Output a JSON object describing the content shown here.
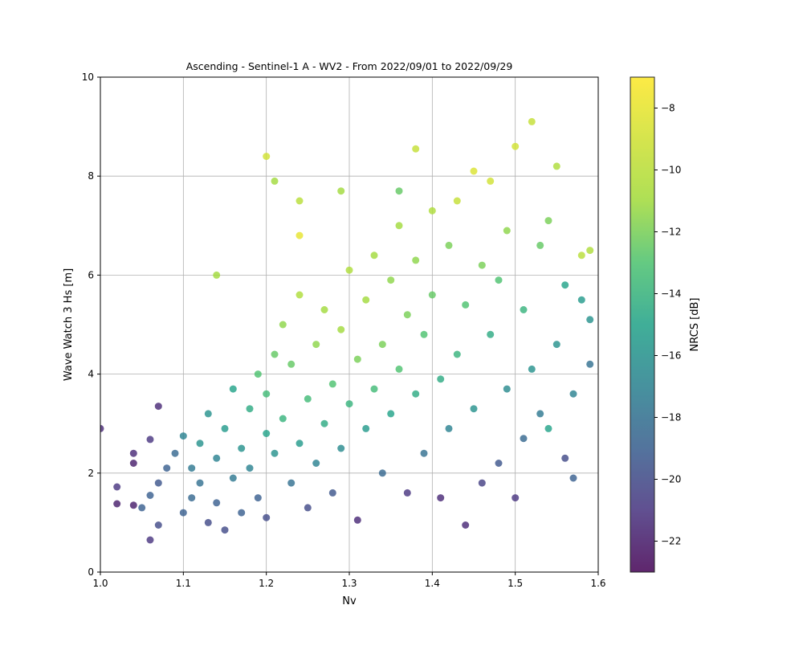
{
  "chart_data": {
    "type": "scatter",
    "title": "Ascending - Sentinel-1 A - WV2 - From 2022/09/01 to 2022/09/29",
    "xlabel": "Nv",
    "ylabel": "Wave Watch 3 Hs [m]",
    "xlim": [
      1.0,
      1.6
    ],
    "ylim": [
      0,
      10
    ],
    "xticks": [
      "1.0",
      "1.1",
      "1.2",
      "1.3",
      "1.4",
      "1.5",
      "1.6"
    ],
    "yticks": [
      "0",
      "2",
      "4",
      "6",
      "8",
      "10"
    ],
    "grid": true,
    "colormap": "viridis",
    "colorbar": {
      "label": "NRCS [dB]",
      "range": [
        -23,
        -7
      ],
      "ticks": [
        "−22",
        "−20",
        "−18",
        "−16",
        "−14",
        "−12",
        "−10",
        "−8"
      ]
    },
    "points_note_free": true,
    "series": [
      {
        "points": [
          [
            1.0,
            2.9,
            -21.5
          ],
          [
            1.02,
            1.72,
            -21
          ],
          [
            1.02,
            1.38,
            -22
          ],
          [
            1.04,
            2.4,
            -21.5
          ],
          [
            1.04,
            2.2,
            -22
          ],
          [
            1.04,
            1.35,
            -22
          ],
          [
            1.06,
            2.68,
            -21
          ],
          [
            1.07,
            3.35,
            -21.5
          ],
          [
            1.06,
            0.65,
            -21
          ],
          [
            1.07,
            0.95,
            -20
          ],
          [
            1.05,
            1.3,
            -19
          ],
          [
            1.06,
            1.55,
            -19
          ],
          [
            1.07,
            1.8,
            -19.5
          ],
          [
            1.08,
            2.1,
            -19
          ],
          [
            1.09,
            2.4,
            -18.5
          ],
          [
            1.1,
            2.75,
            -17
          ],
          [
            1.1,
            1.2,
            -19
          ],
          [
            1.11,
            1.5,
            -18.5
          ],
          [
            1.11,
            2.1,
            -17.5
          ],
          [
            1.12,
            1.8,
            -18
          ],
          [
            1.12,
            2.6,
            -16
          ],
          [
            1.13,
            1.0,
            -20
          ],
          [
            1.13,
            3.2,
            -16
          ],
          [
            1.14,
            2.3,
            -17
          ],
          [
            1.14,
            1.4,
            -19
          ],
          [
            1.15,
            2.9,
            -15.5
          ],
          [
            1.15,
            0.85,
            -20
          ],
          [
            1.16,
            3.7,
            -15
          ],
          [
            1.16,
            1.9,
            -17.5
          ],
          [
            1.17,
            2.5,
            -16
          ],
          [
            1.17,
            1.2,
            -19
          ],
          [
            1.18,
            3.3,
            -14.5
          ],
          [
            1.18,
            2.1,
            -17
          ],
          [
            1.19,
            4.0,
            -13
          ],
          [
            1.19,
            1.5,
            -19
          ],
          [
            1.2,
            2.8,
            -15
          ],
          [
            1.2,
            3.6,
            -13.5
          ],
          [
            1.2,
            1.1,
            -20
          ],
          [
            1.21,
            4.4,
            -12.5
          ],
          [
            1.21,
            2.4,
            -16
          ],
          [
            1.22,
            3.1,
            -14
          ],
          [
            1.22,
            5.0,
            -11.5
          ],
          [
            1.23,
            1.8,
            -18
          ],
          [
            1.23,
            4.2,
            -12.5
          ],
          [
            1.24,
            2.6,
            -15.5
          ],
          [
            1.24,
            5.6,
            -10.5
          ],
          [
            1.25,
            3.5,
            -13.5
          ],
          [
            1.25,
            1.3,
            -20
          ],
          [
            1.26,
            4.6,
            -11.5
          ],
          [
            1.26,
            2.2,
            -17
          ],
          [
            1.27,
            3.0,
            -14.5
          ],
          [
            1.27,
            5.3,
            -11
          ],
          [
            1.28,
            3.8,
            -13
          ],
          [
            1.28,
            1.6,
            -19.5
          ],
          [
            1.29,
            4.9,
            -11
          ],
          [
            1.29,
            2.5,
            -16.5
          ],
          [
            1.3,
            3.4,
            -14
          ],
          [
            1.3,
            6.1,
            -10.5
          ],
          [
            1.31,
            4.3,
            -12
          ],
          [
            1.31,
            1.05,
            -21.5
          ],
          [
            1.32,
            5.5,
            -11
          ],
          [
            1.32,
            2.9,
            -15.5
          ],
          [
            1.33,
            3.7,
            -13.5
          ],
          [
            1.33,
            6.4,
            -11
          ],
          [
            1.34,
            4.6,
            -12
          ],
          [
            1.34,
            2.0,
            -18.5
          ],
          [
            1.35,
            5.9,
            -11.5
          ],
          [
            1.35,
            3.2,
            -15
          ],
          [
            1.36,
            4.1,
            -13
          ],
          [
            1.36,
            7.0,
            -11
          ],
          [
            1.37,
            5.2,
            -12
          ],
          [
            1.37,
            1.6,
            -21
          ],
          [
            1.38,
            6.3,
            -11.5
          ],
          [
            1.38,
            3.6,
            -14.5
          ],
          [
            1.39,
            4.8,
            -13
          ],
          [
            1.39,
            2.4,
            -18
          ],
          [
            1.4,
            5.6,
            -12.5
          ],
          [
            1.4,
            7.3,
            -10.5
          ],
          [
            1.41,
            3.9,
            -14.5
          ],
          [
            1.41,
            1.5,
            -21.5
          ],
          [
            1.42,
            6.6,
            -12
          ],
          [
            1.42,
            2.9,
            -17
          ],
          [
            1.43,
            4.4,
            -14
          ],
          [
            1.43,
            7.5,
            -9.5
          ],
          [
            1.44,
            5.4,
            -13
          ],
          [
            1.44,
            0.95,
            -21.5
          ],
          [
            1.45,
            3.3,
            -16
          ],
          [
            1.45,
            8.1,
            -8.5
          ],
          [
            1.46,
            6.2,
            -12
          ],
          [
            1.46,
            1.8,
            -20.5
          ],
          [
            1.47,
            4.8,
            -14.5
          ],
          [
            1.47,
            7.9,
            -9
          ],
          [
            1.48,
            2.2,
            -19.5
          ],
          [
            1.48,
            5.9,
            -13
          ],
          [
            1.49,
            3.7,
            -16.5
          ],
          [
            1.49,
            6.9,
            -11.5
          ],
          [
            1.5,
            8.6,
            -9
          ],
          [
            1.5,
            1.5,
            -21
          ],
          [
            1.51,
            5.3,
            -14
          ],
          [
            1.51,
            2.7,
            -18.5
          ],
          [
            1.52,
            9.1,
            -9.5
          ],
          [
            1.52,
            4.1,
            -16
          ],
          [
            1.53,
            3.2,
            -17.5
          ],
          [
            1.53,
            6.6,
            -12.5
          ],
          [
            1.54,
            7.1,
            -12
          ],
          [
            1.54,
            2.9,
            -15
          ],
          [
            1.55,
            8.2,
            -10.5
          ],
          [
            1.55,
            4.6,
            -16
          ],
          [
            1.56,
            2.3,
            -20
          ],
          [
            1.56,
            5.8,
            -15
          ],
          [
            1.57,
            3.6,
            -17
          ],
          [
            1.57,
            1.9,
            -19
          ],
          [
            1.58,
            5.5,
            -15.5
          ],
          [
            1.58,
            6.4,
            -10
          ],
          [
            1.59,
            4.2,
            -18
          ],
          [
            1.59,
            6.5,
            -10.5
          ],
          [
            1.59,
            5.1,
            -16
          ],
          [
            1.2,
            8.4,
            -9
          ],
          [
            1.21,
            7.9,
            -11
          ],
          [
            1.24,
            7.5,
            -10
          ],
          [
            1.24,
            6.8,
            -8
          ],
          [
            1.14,
            6.0,
            -11
          ],
          [
            1.38,
            8.55,
            -9.5
          ],
          [
            1.36,
            7.7,
            -12.5
          ],
          [
            1.29,
            7.7,
            -11
          ]
        ]
      }
    ]
  }
}
